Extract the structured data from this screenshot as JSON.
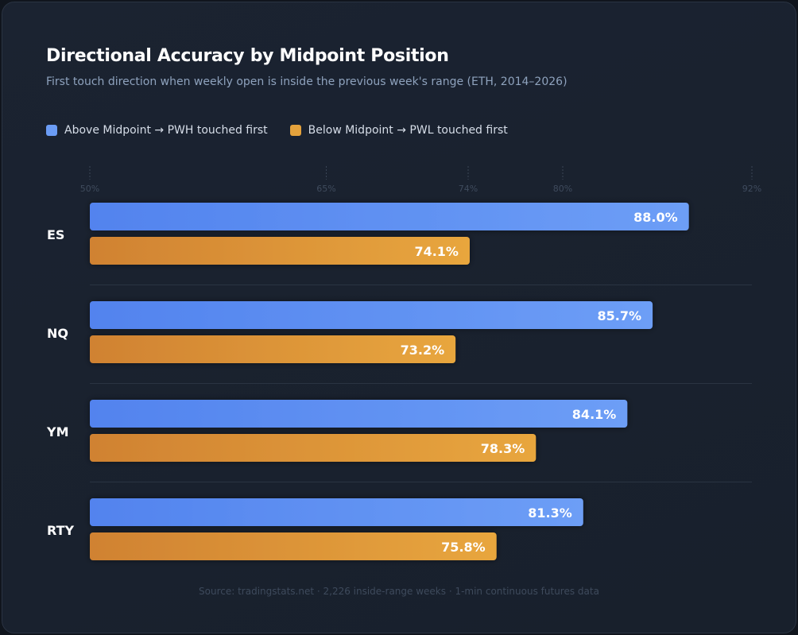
{
  "title": "Directional Accuracy by Midpoint Position",
  "subtitle": "First touch direction when weekly open is inside the previous week's range (ETH, 2014–2026)",
  "footer": "Source: tradingstats.net · 2,226 inside-range weeks · 1-min continuous futures data",
  "chart_data": {
    "type": "bar",
    "orientation": "horizontal",
    "categories": [
      "ES",
      "NQ",
      "YM",
      "RTY"
    ],
    "series": [
      {
        "name": "Above Midpoint → PWH touched first",
        "color": "#6b9cf5",
        "values": [
          88.0,
          85.7,
          84.1,
          81.3
        ],
        "labels": [
          "88.0%",
          "85.7%",
          "84.1%",
          "81.3%"
        ]
      },
      {
        "name": "Below Midpoint → PWL touched first",
        "color": "#e4a23c",
        "values": [
          74.1,
          73.2,
          78.3,
          75.8
        ],
        "labels": [
          "74.1%",
          "73.2%",
          "78.3%",
          "75.8%"
        ]
      }
    ],
    "xlim": [
      50,
      92
    ],
    "ticks": [
      50,
      65,
      74,
      80,
      92
    ],
    "tick_labels": [
      "50%",
      "65%",
      "74%",
      "80%",
      "92%"
    ],
    "legend": "top-left",
    "grid": false
  }
}
